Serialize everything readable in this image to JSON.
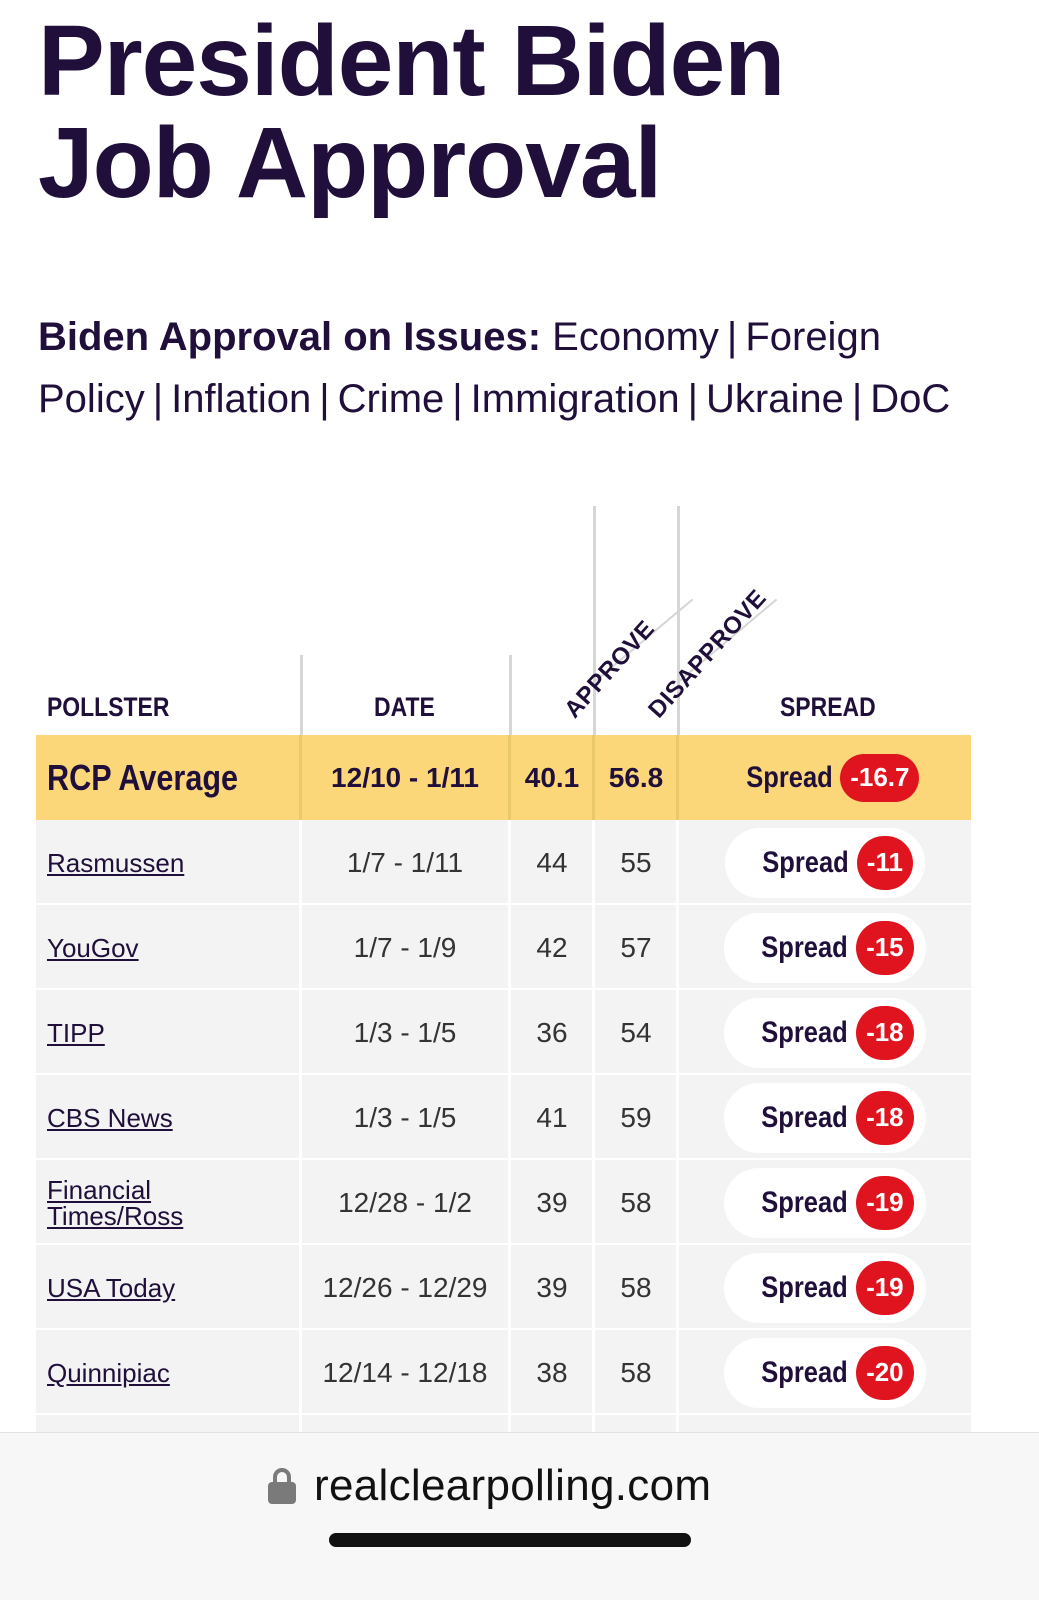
{
  "title": {
    "line1": "President Biden",
    "line2": "Job Approval"
  },
  "issues": {
    "label": "Biden Approval on Issues:",
    "links": [
      "Economy",
      "Foreign Policy",
      "Inflation",
      "Crime",
      "Immigration",
      "Ukraine",
      "DoC"
    ],
    "separator": "|"
  },
  "table": {
    "headers": {
      "pollster": "POLLSTER",
      "date": "DATE",
      "approve": "APPROVE",
      "disapprove": "DISAPPROVE",
      "spread": "SPREAD"
    },
    "average": {
      "pollster": "RCP Average",
      "date": "12/10 - 1/11",
      "approve": "40.1",
      "disapprove": "56.8",
      "spread_label": "Spread",
      "spread": "-16.7"
    },
    "rows": [
      {
        "pollster": "Rasmussen",
        "date": "1/7 - 1/11",
        "approve": "44",
        "disapprove": "55",
        "spread_label": "Spread",
        "spread": "-11"
      },
      {
        "pollster": "YouGov",
        "date": "1/7 - 1/9",
        "approve": "42",
        "disapprove": "57",
        "spread_label": "Spread",
        "spread": "-15"
      },
      {
        "pollster": "TIPP",
        "date": "1/3 - 1/5",
        "approve": "36",
        "disapprove": "54",
        "spread_label": "Spread",
        "spread": "-18"
      },
      {
        "pollster": "CBS News",
        "date": "1/3 - 1/5",
        "approve": "41",
        "disapprove": "59",
        "spread_label": "Spread",
        "spread": "-18"
      },
      {
        "pollster": "Financial Times/Ross",
        "date": "12/28 - 1/2",
        "approve": "39",
        "disapprove": "58",
        "spread_label": "Spread",
        "spread": "-19"
      },
      {
        "pollster": "USA Today",
        "date": "12/26 - 12/29",
        "approve": "39",
        "disapprove": "58",
        "spread_label": "Spread",
        "spread": "-19"
      },
      {
        "pollster": "Quinnipiac",
        "date": "12/14 - 12/18",
        "approve": "38",
        "disapprove": "58",
        "spread_label": "Spread",
        "spread": "-20"
      }
    ]
  },
  "browser": {
    "url": "realclearpolling.com"
  },
  "colors": {
    "brand": "#1f0f3a",
    "average_row": "#fbd779",
    "spread_badge": "#e0141e",
    "row_bg": "#f3f3f3"
  }
}
